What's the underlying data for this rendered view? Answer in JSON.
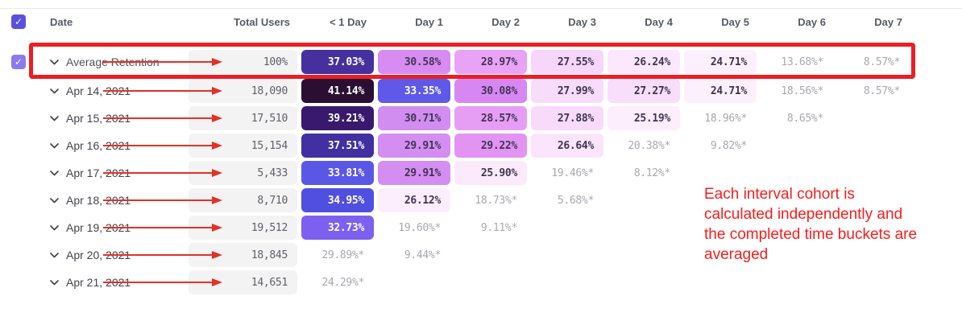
{
  "header": {
    "select_all_checked": true,
    "select_all_color": "#5a50e0",
    "date": "Date",
    "total_users": "Total Users",
    "day_columns": [
      "< 1 Day",
      "Day 1",
      "Day 2",
      "Day 3",
      "Day 4",
      "Day 5",
      "Day 6",
      "Day 7"
    ]
  },
  "rows": [
    {
      "type": "average",
      "checked": true,
      "checkbox_color": "#8a7cf0",
      "label": "Average Retention",
      "total": "100%",
      "cells": [
        {
          "value": "37.03%",
          "bg": "#46309e",
          "fg": "#ffffff"
        },
        {
          "value": "30.58%",
          "bg": "#d88bf1",
          "fg": "#3f3552"
        },
        {
          "value": "28.97%",
          "bg": "#e9a3f6",
          "fg": "#3f3552"
        },
        {
          "value": "27.55%",
          "bg": "#f6d6fa",
          "fg": "#3f3552"
        },
        {
          "value": "26.24%",
          "bg": "#fbe8fc",
          "fg": "#3f3552"
        },
        {
          "value": "24.71%",
          "bg": "#fdf0fd",
          "fg": "#3f3552"
        },
        {
          "value": "13.68%*",
          "bg": null,
          "fg": "#a8a8b0"
        },
        {
          "value": "8.57%*",
          "bg": null,
          "fg": "#a8a8b0"
        }
      ]
    },
    {
      "type": "cohort",
      "label": "Apr 14, 2021",
      "total": "18,090",
      "cells": [
        {
          "value": "41.14%",
          "bg": "#2a0f33",
          "fg": "#ffffff"
        },
        {
          "value": "33.35%",
          "bg": "#5f58e9",
          "fg": "#ffffff"
        },
        {
          "value": "30.08%",
          "bg": "#d787f2",
          "fg": "#3f3552"
        },
        {
          "value": "27.99%",
          "bg": "#f8dcfb",
          "fg": "#3f3552"
        },
        {
          "value": "27.27%",
          "bg": "#f8defb",
          "fg": "#3f3552"
        },
        {
          "value": "24.71%",
          "bg": "#fdf0fd",
          "fg": "#3f3552"
        },
        {
          "value": "18.56%*",
          "bg": null,
          "fg": "#a8a8b0"
        },
        {
          "value": "8.57%*",
          "bg": null,
          "fg": "#a8a8b0"
        }
      ]
    },
    {
      "type": "cohort",
      "label": "Apr 15, 2021",
      "total": "17,510",
      "cells": [
        {
          "value": "39.21%",
          "bg": "#39196d",
          "fg": "#ffffff"
        },
        {
          "value": "30.71%",
          "bg": "#d28df0",
          "fg": "#3f3552"
        },
        {
          "value": "28.57%",
          "bg": "#e69ef5",
          "fg": "#3f3552"
        },
        {
          "value": "27.88%",
          "bg": "#f8dbfb",
          "fg": "#3f3552"
        },
        {
          "value": "25.19%",
          "bg": "#fdeefd",
          "fg": "#3f3552"
        },
        {
          "value": "18.96%*",
          "bg": null,
          "fg": "#a8a8b0"
        },
        {
          "value": "8.65%*",
          "bg": null,
          "fg": "#a8a8b0"
        },
        null
      ]
    },
    {
      "type": "cohort",
      "label": "Apr 16, 2021",
      "total": "15,154",
      "cells": [
        {
          "value": "37.51%",
          "bg": "#422fa2",
          "fg": "#ffffff"
        },
        {
          "value": "29.91%",
          "bg": "#d48df1",
          "fg": "#3f3552"
        },
        {
          "value": "29.22%",
          "bg": "#e294f3",
          "fg": "#3f3552"
        },
        {
          "value": "26.64%",
          "bg": "#fae5fc",
          "fg": "#3f3552"
        },
        {
          "value": "20.38%*",
          "bg": null,
          "fg": "#a8a8b0"
        },
        {
          "value": "9.82%*",
          "bg": null,
          "fg": "#a8a8b0"
        },
        null,
        null
      ]
    },
    {
      "type": "cohort",
      "label": "Apr 17, 2021",
      "total": "5,433",
      "cells": [
        {
          "value": "33.81%",
          "bg": "#5a57e6",
          "fg": "#ffffff"
        },
        {
          "value": "29.91%",
          "bg": "#d48df1",
          "fg": "#3f3552"
        },
        {
          "value": "25.90%",
          "bg": "#fbeafc",
          "fg": "#3f3552"
        },
        {
          "value": "19.46%*",
          "bg": null,
          "fg": "#a8a8b0"
        },
        {
          "value": "8.12%*",
          "bg": null,
          "fg": "#a8a8b0"
        },
        null,
        null,
        null
      ]
    },
    {
      "type": "cohort",
      "label": "Apr 18, 2021",
      "total": "8,710",
      "cells": [
        {
          "value": "34.95%",
          "bg": "#514fe0",
          "fg": "#ffffff"
        },
        {
          "value": "26.12%",
          "bg": "#fdeefd",
          "fg": "#3f3552"
        },
        {
          "value": "18.73%*",
          "bg": null,
          "fg": "#a8a8b0"
        },
        {
          "value": "5.68%*",
          "bg": null,
          "fg": "#a8a8b0"
        },
        null,
        null,
        null,
        null
      ]
    },
    {
      "type": "cohort",
      "label": "Apr 19, 2021",
      "total": "19,512",
      "cells": [
        {
          "value": "32.73%",
          "bg": "#7d60ef",
          "fg": "#ffffff"
        },
        {
          "value": "19.60%*",
          "bg": null,
          "fg": "#a8a8b0"
        },
        {
          "value": "9.11%*",
          "bg": null,
          "fg": "#a8a8b0"
        },
        null,
        null,
        null,
        null,
        null
      ]
    },
    {
      "type": "cohort",
      "label": "Apr 20, 2021",
      "total": "18,845",
      "cells": [
        {
          "value": "29.89%*",
          "bg": null,
          "fg": "#a8a8b0"
        },
        {
          "value": "9.44%*",
          "bg": null,
          "fg": "#a8a8b0"
        },
        null,
        null,
        null,
        null,
        null,
        null
      ]
    },
    {
      "type": "cohort",
      "label": "Apr 21, 2021",
      "total": "14,651",
      "cells": [
        {
          "value": "24.29%*",
          "bg": null,
          "fg": "#a8a8b0"
        },
        null,
        null,
        null,
        null,
        null,
        null,
        null
      ]
    }
  ],
  "annotations": {
    "highlight_box_color": "#ec1d25",
    "arrow_color": "#e63026",
    "note_color": "#fb1b1b",
    "note_lines": [
      "Each interval cohort is",
      "calculated independently and",
      "the completed time buckets are",
      "averaged"
    ]
  }
}
